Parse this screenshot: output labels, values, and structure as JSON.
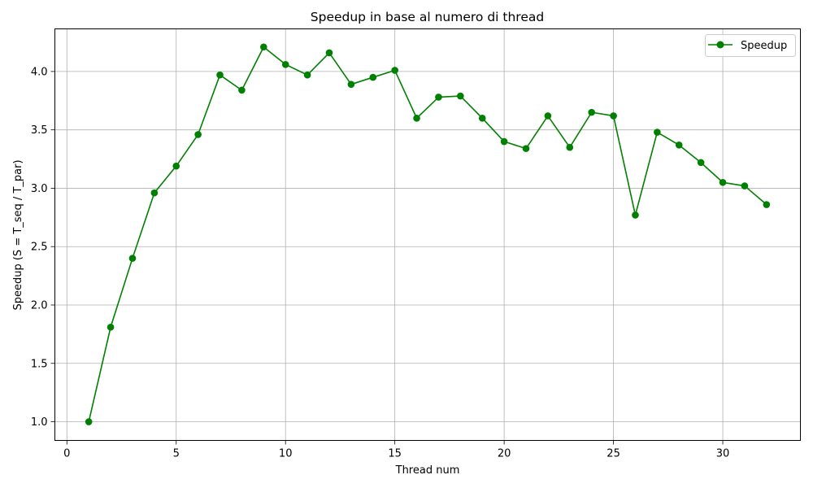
{
  "chart_data": {
    "type": "line",
    "title": "Speedup in base al numero di thread",
    "xlabel": "Thread num",
    "ylabel": "Speedup (S = T_seq / T_par)",
    "xlim": [
      -0.55,
      33.55
    ],
    "ylim": [
      0.84,
      4.365
    ],
    "xticks": [
      0,
      5,
      10,
      15,
      20,
      25,
      30
    ],
    "yticks": [
      1.0,
      1.5,
      2.0,
      2.5,
      3.0,
      3.5,
      4.0
    ],
    "xtick_labels": [
      "0",
      "5",
      "10",
      "15",
      "20",
      "25",
      "30"
    ],
    "ytick_labels": [
      "1.0",
      "1.5",
      "2.0",
      "2.5",
      "3.0",
      "3.5",
      "4.0"
    ],
    "grid": true,
    "legend": {
      "position": "top-right"
    },
    "x": [
      1,
      2,
      3,
      4,
      5,
      6,
      7,
      8,
      9,
      10,
      11,
      12,
      13,
      14,
      15,
      16,
      17,
      18,
      19,
      20,
      21,
      22,
      23,
      24,
      25,
      26,
      27,
      28,
      29,
      30,
      31,
      32
    ],
    "series": [
      {
        "name": "Speedup",
        "color": "#008000",
        "marker": "circle",
        "values": [
          1.0,
          1.81,
          2.4,
          2.96,
          3.19,
          3.46,
          3.97,
          3.84,
          4.21,
          4.06,
          3.97,
          4.16,
          3.89,
          3.95,
          4.01,
          3.6,
          3.78,
          3.79,
          3.6,
          3.4,
          3.34,
          3.62,
          3.35,
          3.65,
          3.62,
          2.77,
          3.48,
          3.37,
          3.22,
          3.05,
          3.02,
          2.86
        ]
      }
    ]
  }
}
